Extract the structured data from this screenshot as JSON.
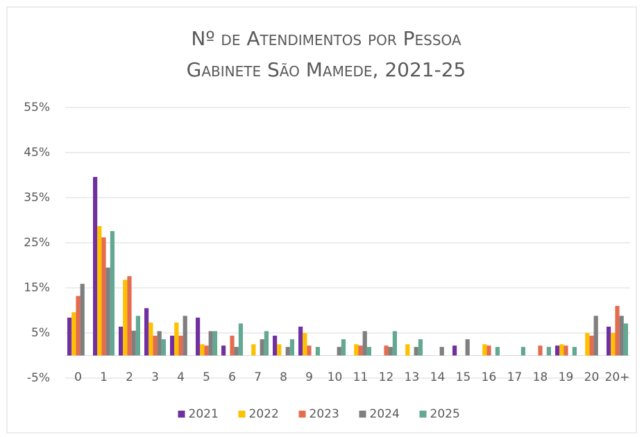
{
  "chart_data": {
    "type": "bar",
    "title": [
      "Nº de Atendimentos por Pessoa",
      "Gabinete São Mamede, 2021-25"
    ],
    "categories": [
      "0",
      "1",
      "2",
      "3",
      "4",
      "5",
      "6",
      "7",
      "8",
      "9",
      "10",
      "11",
      "12",
      "13",
      "14",
      "15",
      "16",
      "17",
      "18",
      "19",
      "20",
      "20+"
    ],
    "series": [
      {
        "name": "2021",
        "color": "#7030a0",
        "values": [
          8.4,
          39.6,
          6.4,
          10.5,
          4.4,
          8.4,
          2.2,
          0,
          4.4,
          6.4,
          0,
          0,
          0,
          0,
          0,
          2.2,
          0,
          0,
          0,
          2.2,
          0,
          6.4
        ]
      },
      {
        "name": "2022",
        "color": "#ffc000",
        "values": [
          9.6,
          28.7,
          16.8,
          7.3,
          7.3,
          2.5,
          0,
          2.5,
          2.5,
          5.0,
          0,
          2.5,
          0,
          2.5,
          0,
          0,
          2.5,
          0,
          0,
          2.5,
          5.0,
          5.0
        ]
      },
      {
        "name": "2023",
        "color": "#e46c4f",
        "values": [
          13.2,
          26.2,
          17.6,
          4.4,
          4.4,
          2.2,
          4.4,
          0,
          0,
          2.2,
          0,
          2.2,
          2.2,
          0,
          0,
          0,
          2.2,
          0,
          2.2,
          2.2,
          4.4,
          11.0
        ]
      },
      {
        "name": "2024",
        "color": "#7f7f7f",
        "values": [
          15.9,
          19.5,
          5.5,
          5.4,
          8.8,
          5.4,
          1.9,
          3.6,
          1.9,
          0,
          1.9,
          5.4,
          1.9,
          1.9,
          1.9,
          3.6,
          0,
          0,
          0,
          0,
          8.8,
          8.8
        ]
      },
      {
        "name": "2025",
        "color": "#62a892",
        "values": [
          0,
          27.6,
          8.8,
          3.6,
          0,
          5.4,
          7.1,
          5.4,
          3.6,
          1.9,
          3.6,
          1.9,
          5.4,
          3.6,
          0,
          0,
          1.9,
          1.9,
          1.9,
          1.9,
          0,
          7.1
        ]
      }
    ],
    "ylim": [
      -5,
      55
    ],
    "yticks": [
      {
        "value": -5,
        "label": "-5%"
      },
      {
        "value": 5,
        "label": "5%"
      },
      {
        "value": 15,
        "label": "15%"
      },
      {
        "value": 25,
        "label": "25%"
      },
      {
        "value": 35,
        "label": "35%"
      },
      {
        "value": 45,
        "label": "45%"
      },
      {
        "value": 55,
        "label": "55%"
      }
    ],
    "grid": true,
    "legend": "bottom"
  }
}
